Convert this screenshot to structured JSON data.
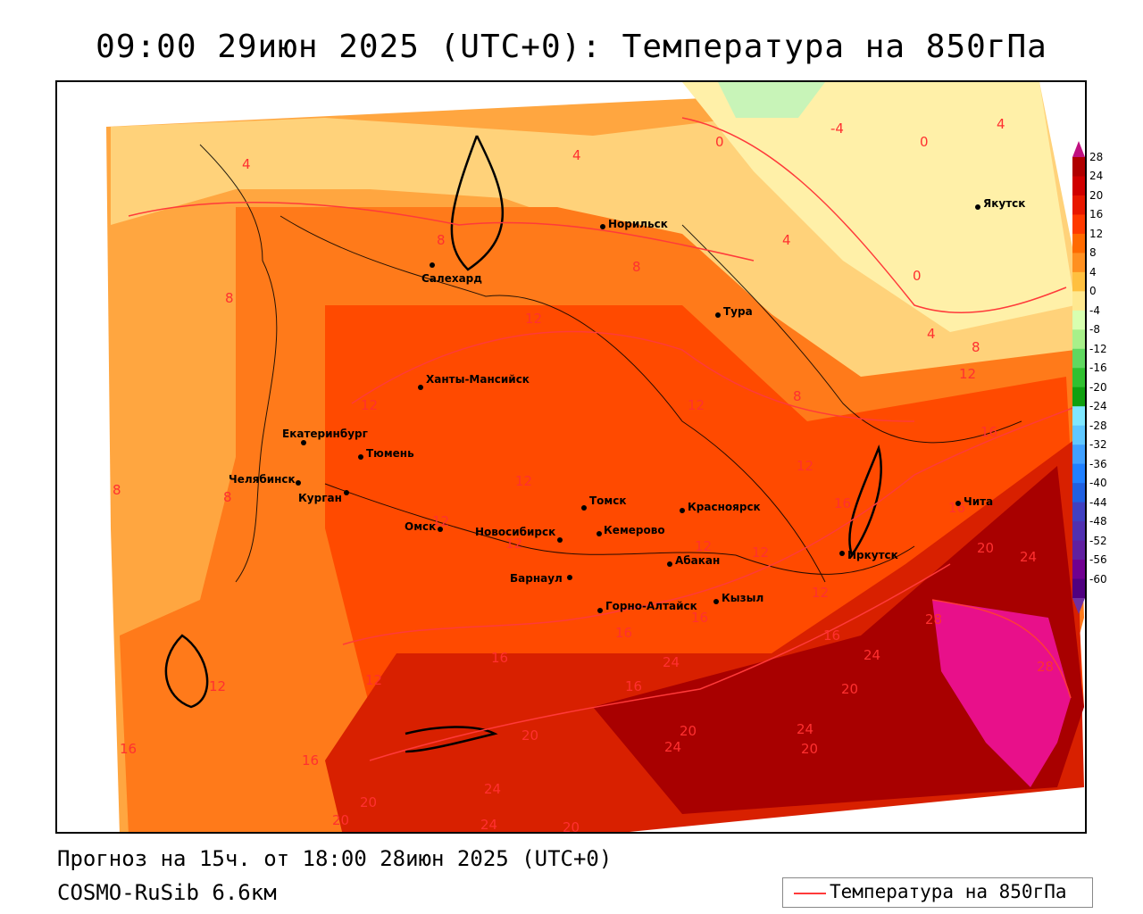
{
  "title": "09:00 29июн 2025 (UTC+0): Температура на 850гПа",
  "footer": {
    "forecast": "Прогноз на 15ч. от 18:00 28июн 2025 (UTC+0)",
    "model": "COSMO-RuSib 6.6км"
  },
  "legend": {
    "label": "Температура на 850гПа",
    "line_color": "#ff3a3a"
  },
  "colorbar": {
    "ticks": [
      "28",
      "24",
      "20",
      "16",
      "12",
      "8",
      "4",
      "0",
      "-4",
      "-8",
      "-12",
      "-16",
      "-20",
      "-24",
      "-28",
      "-32",
      "-36",
      "-40",
      "-44",
      "-48",
      "-52",
      "-56",
      "-60"
    ],
    "colors": [
      "#b00000",
      "#d00000",
      "#e81800",
      "#ff3a00",
      "#ff6a00",
      "#ff9020",
      "#ffc040",
      "#ffe890",
      "#d8ffb0",
      "#a8f08a",
      "#60d860",
      "#30c030",
      "#10a010",
      "#80e8ff",
      "#60c8ff",
      "#40a0ff",
      "#2080ff",
      "#2060e0",
      "#4040c0",
      "#5030b0",
      "#6020a0",
      "#700090",
      "#500080"
    ]
  },
  "cities": [
    {
      "name": "Норильск"
    },
    {
      "name": "Якутск"
    },
    {
      "name": "Салехард"
    },
    {
      "name": "Тура"
    },
    {
      "name": "Ханты-Мансийск"
    },
    {
      "name": "Екатеринбург"
    },
    {
      "name": "Тюмень"
    },
    {
      "name": "Челябинск"
    },
    {
      "name": "Курган"
    },
    {
      "name": "Омск"
    },
    {
      "name": "Томск"
    },
    {
      "name": "Красноярск"
    },
    {
      "name": "Новосибирск"
    },
    {
      "name": "Кемерово"
    },
    {
      "name": "Абакан"
    },
    {
      "name": "Иркутск"
    },
    {
      "name": "Чита"
    },
    {
      "name": "Барнаул"
    },
    {
      "name": "Горно-Алтайск"
    },
    {
      "name": "Кызыл"
    }
  ],
  "isotherm_labels": [
    "-4",
    "0",
    "4",
    "8",
    "12",
    "16",
    "20",
    "24",
    "28"
  ]
}
